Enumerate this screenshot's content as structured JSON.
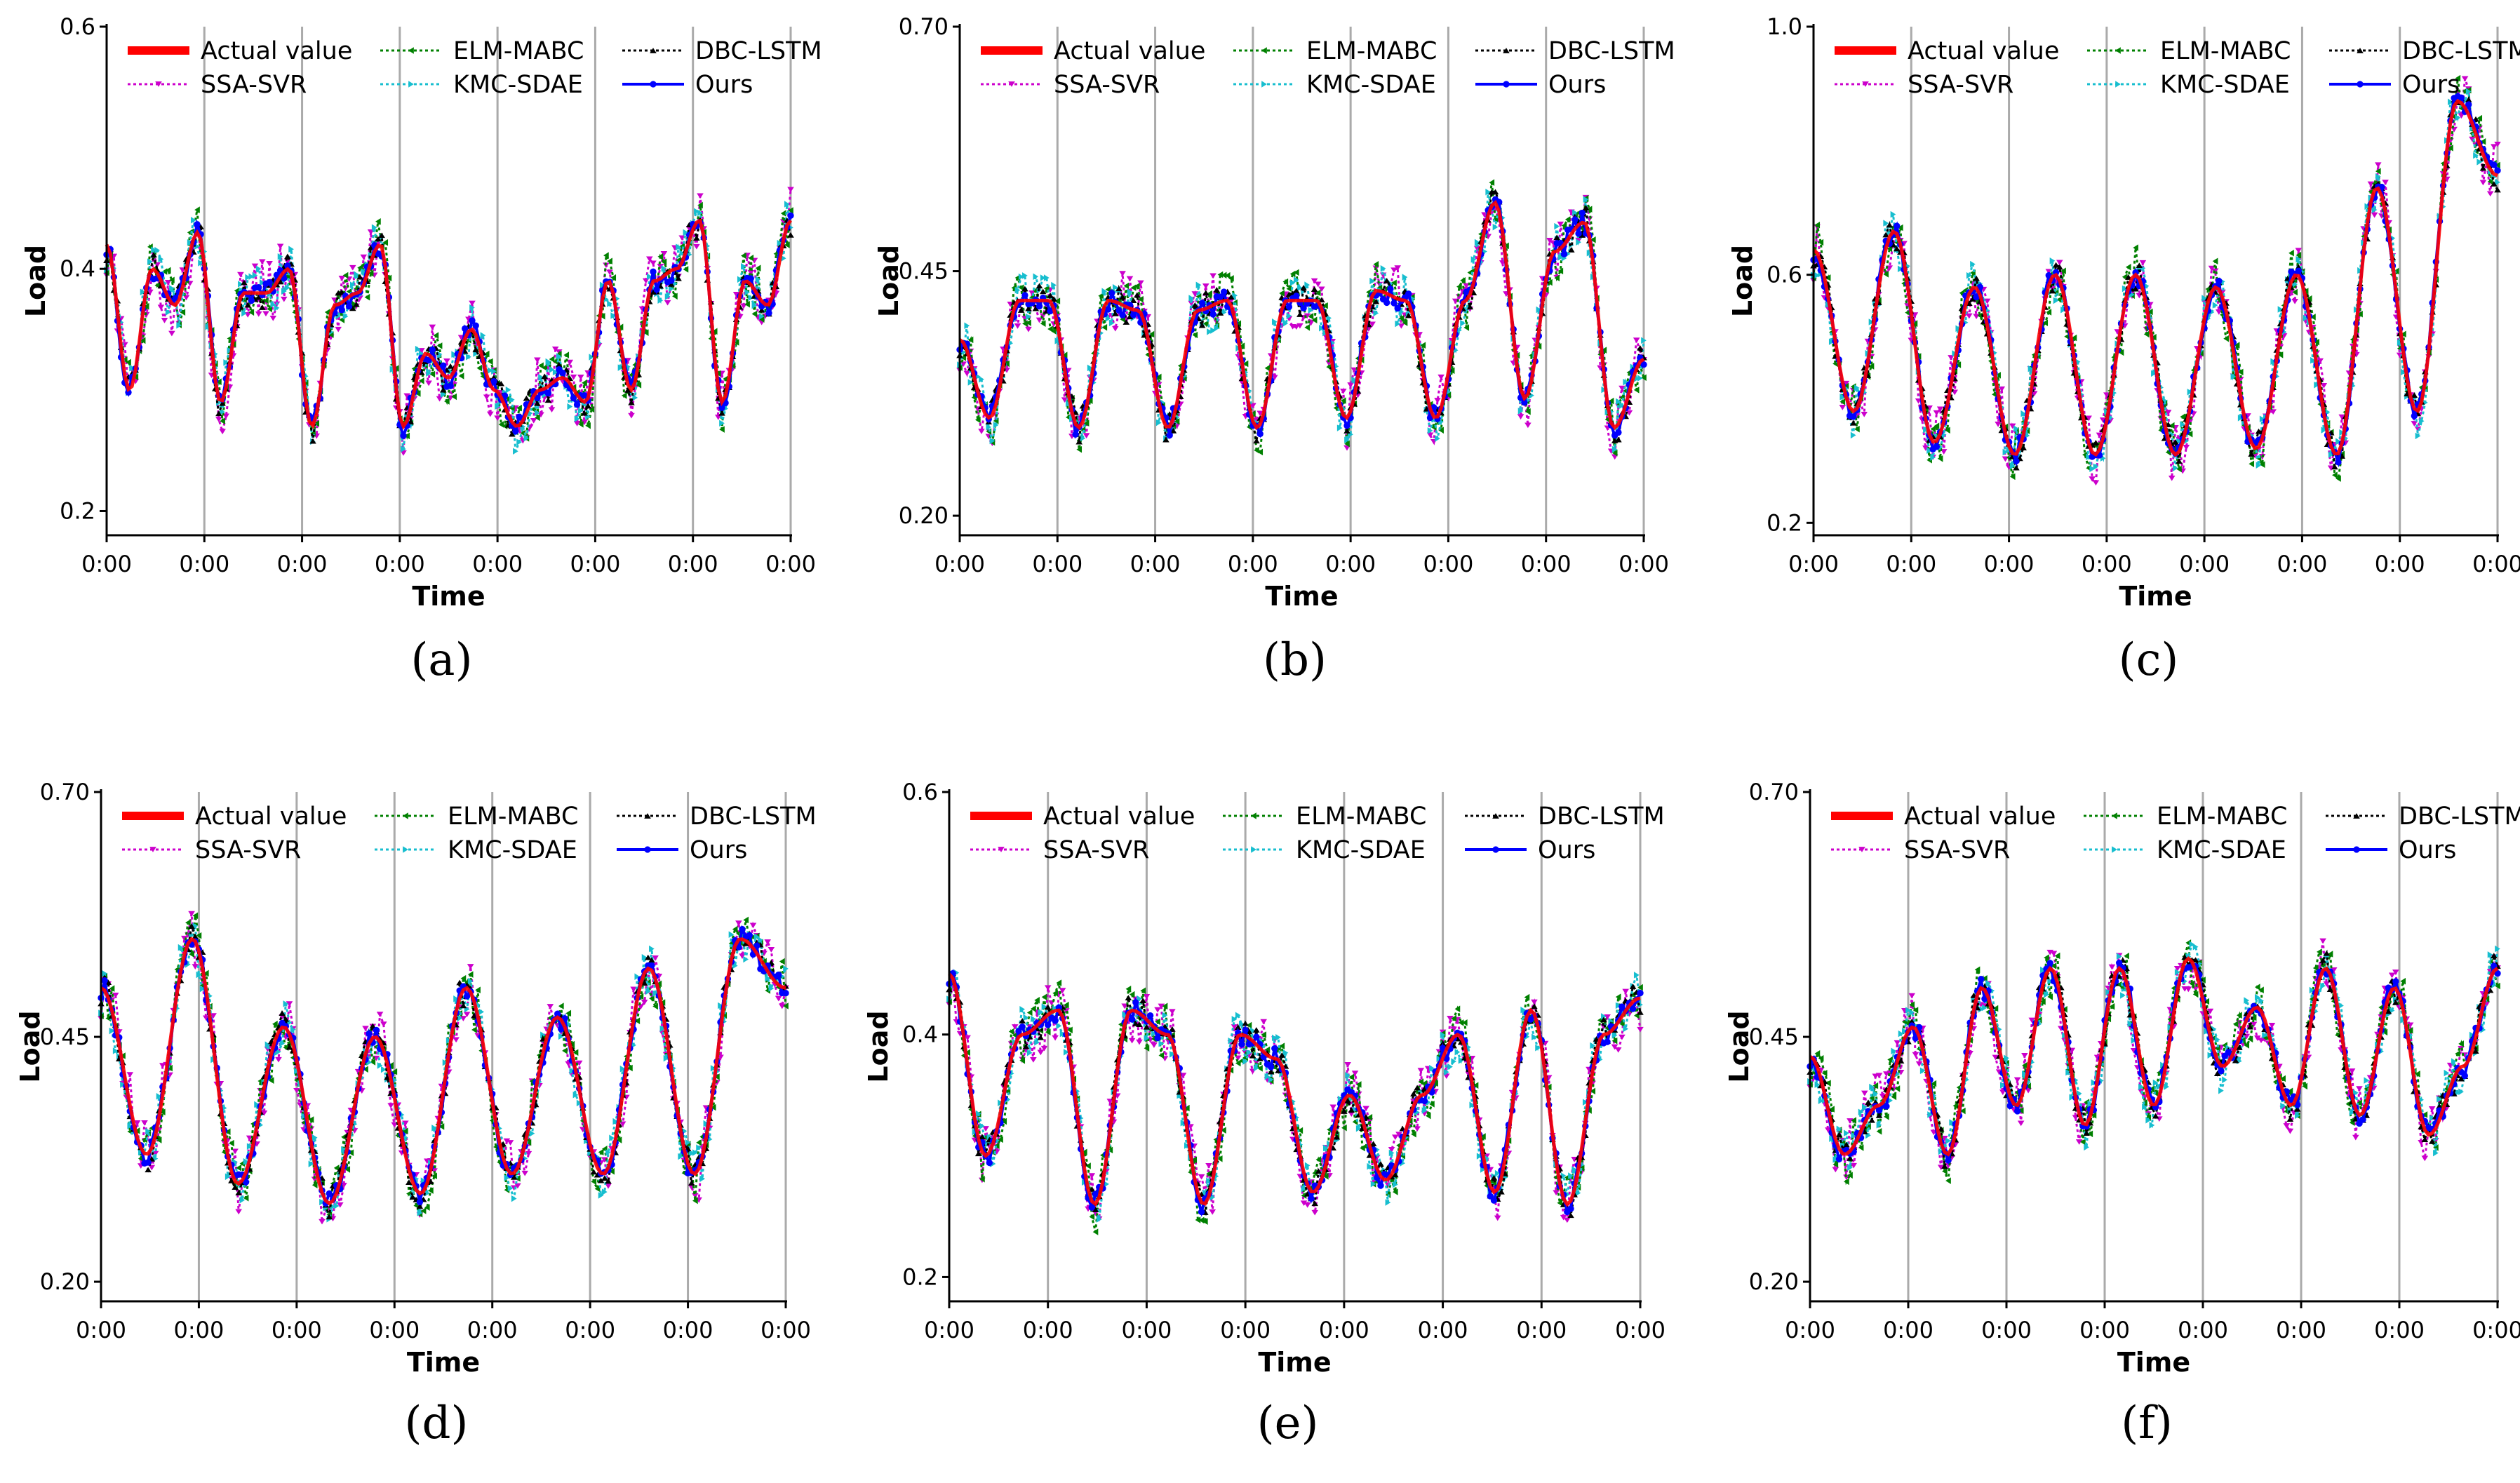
{
  "figure": {
    "x_tick_label": "0:00",
    "x_tick_count": 8,
    "xlabel": "Time",
    "ylabel": "Load"
  },
  "legend": [
    {
      "name": "Actual value",
      "color": "#ff0000",
      "marker": "none",
      "style": "solid-thick"
    },
    {
      "name": "SSA-SVR",
      "color": "#cc00cc",
      "marker": "triangle-down",
      "style": "dotted"
    },
    {
      "name": "ELM-MABC",
      "color": "#008000",
      "marker": "triangle-left",
      "style": "dotted"
    },
    {
      "name": "KMC-SDAE",
      "color": "#17becf",
      "marker": "triangle-right",
      "style": "dotted"
    },
    {
      "name": "DBC-LSTM",
      "color": "#000000",
      "marker": "triangle-up",
      "style": "dotted"
    },
    {
      "name": "Ours",
      "color": "#0000ff",
      "marker": "circle",
      "style": "solid"
    }
  ],
  "chart_data": [
    {
      "panel": "(a)",
      "type": "line",
      "xlabel": "Time",
      "ylabel": "Load",
      "ylim": [
        0.18,
        0.6
      ],
      "yticks": [
        "0.2",
        "0.4",
        "0.6"
      ],
      "ytick_values": [
        0.2,
        0.4,
        0.6
      ],
      "days": 7,
      "actual": [
        0.42,
        0.3,
        0.4,
        0.37,
        0.43,
        0.29,
        0.38,
        0.38,
        0.4,
        0.27,
        0.37,
        0.38,
        0.42,
        0.27,
        0.33,
        0.31,
        0.35,
        0.3,
        0.27,
        0.3,
        0.31,
        0.29,
        0.39,
        0.3,
        0.39,
        0.4,
        0.44,
        0.29,
        0.39,
        0.37,
        0.44
      ]
    },
    {
      "panel": "(b)",
      "type": "line",
      "xlabel": "Time",
      "ylabel": "Load",
      "ylim": [
        0.18,
        0.7
      ],
      "yticks": [
        "0.20",
        "0.45",
        "0.70"
      ],
      "ytick_values": [
        0.2,
        0.45,
        0.7
      ],
      "days": 7,
      "actual": [
        0.38,
        0.3,
        0.42,
        0.42,
        0.29,
        0.42,
        0.41,
        0.29,
        0.41,
        0.42,
        0.29,
        0.42,
        0.42,
        0.3,
        0.43,
        0.42,
        0.3,
        0.42,
        0.52,
        0.32,
        0.47,
        0.5,
        0.29,
        0.36
      ]
    },
    {
      "panel": "(c)",
      "type": "line",
      "xlabel": "Time",
      "ylabel": "Load",
      "ylim": [
        0.18,
        1.0
      ],
      "yticks": [
        "0.2",
        "0.6",
        "1.0"
      ],
      "ytick_values": [
        0.2,
        0.6,
        1.0
      ],
      "days": 7,
      "actual": [
        0.64,
        0.38,
        0.67,
        0.33,
        0.58,
        0.31,
        0.6,
        0.31,
        0.6,
        0.31,
        0.58,
        0.32,
        0.6,
        0.31,
        0.74,
        0.38,
        0.88,
        0.76
      ]
    },
    {
      "panel": "(d)",
      "type": "line",
      "xlabel": "Time",
      "ylabel": "Load",
      "ylim": [
        0.18,
        0.7
      ],
      "yticks": [
        "0.20",
        "0.45",
        "0.70"
      ],
      "ytick_values": [
        0.2,
        0.45,
        0.7
      ],
      "days": 7,
      "actual": [
        0.5,
        0.33,
        0.55,
        0.3,
        0.46,
        0.28,
        0.45,
        0.29,
        0.5,
        0.31,
        0.47,
        0.31,
        0.52,
        0.31,
        0.55,
        0.5
      ]
    },
    {
      "panel": "(e)",
      "type": "line",
      "xlabel": "Time",
      "ylabel": "Load",
      "ylim": [
        0.18,
        0.6
      ],
      "yticks": [
        "0.2",
        "0.4",
        "0.6"
      ],
      "ytick_values": [
        0.2,
        0.4,
        0.6
      ],
      "days": 7,
      "actual": [
        0.45,
        0.3,
        0.4,
        0.42,
        0.26,
        0.42,
        0.4,
        0.26,
        0.4,
        0.38,
        0.27,
        0.35,
        0.28,
        0.35,
        0.4,
        0.27,
        0.42,
        0.26,
        0.4,
        0.43
      ]
    },
    {
      "panel": "(f)",
      "type": "line",
      "xlabel": "Time",
      "ylabel": "Load",
      "ylim": [
        0.18,
        0.7
      ],
      "yticks": [
        "0.20",
        "0.45",
        "0.70"
      ],
      "ytick_values": [
        0.2,
        0.45,
        0.7
      ],
      "days": 7,
      "actual": [
        0.43,
        0.33,
        0.38,
        0.46,
        0.33,
        0.5,
        0.38,
        0.52,
        0.36,
        0.52,
        0.38,
        0.53,
        0.42,
        0.48,
        0.38,
        0.52,
        0.37,
        0.5,
        0.35,
        0.42,
        0.52
      ]
    }
  ]
}
